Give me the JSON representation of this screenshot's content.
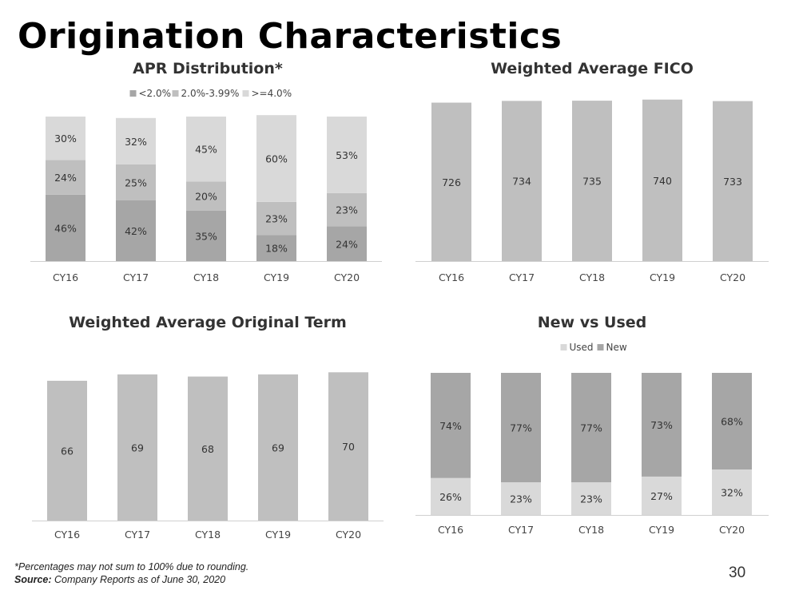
{
  "page": {
    "title": "Origination Characteristics",
    "footnote": "*Percentages may not sum to 100% due to rounding.",
    "source_label": "Source:",
    "source_text": "Company Reports as of June 30, 2020",
    "page_number": "30"
  },
  "colors": {
    "apr_low": "#a6a6a6",
    "apr_mid": "#bfbfbf",
    "apr_high": "#d9d9d9",
    "bar_single": "#bfbfbf",
    "used": "#d9d9d9",
    "new": "#a6a6a6",
    "axis": "#d0d0d0"
  },
  "chart_data": [
    {
      "id": "apr",
      "type": "bar",
      "stacked": true,
      "title": "APR Distribution*",
      "categories": [
        "CY16",
        "CY17",
        "CY18",
        "CY19",
        "CY20"
      ],
      "series": [
        {
          "name": "<2.0%",
          "values": [
            46,
            42,
            35,
            18,
            24
          ],
          "labels": [
            "46%",
            "42%",
            "35%",
            "18%",
            "24%"
          ],
          "color_key": "apr_low"
        },
        {
          "name": "2.0%-3.99%",
          "values": [
            24,
            25,
            20,
            23,
            23
          ],
          "labels": [
            "24%",
            "25%",
            "20%",
            "23%",
            "23%"
          ],
          "color_key": "apr_mid"
        },
        {
          "name": ">=4.0%",
          "values": [
            30,
            32,
            45,
            60,
            53
          ],
          "labels": [
            "30%",
            "32%",
            "45%",
            "60%",
            "53%"
          ],
          "color_key": "apr_high"
        }
      ],
      "ylim": [
        0,
        100
      ],
      "legend": "top"
    },
    {
      "id": "fico",
      "type": "bar",
      "title": "Weighted Average FICO",
      "categories": [
        "CY16",
        "CY17",
        "CY18",
        "CY19",
        "CY20"
      ],
      "values": [
        726,
        734,
        735,
        740,
        733
      ],
      "labels": [
        "726",
        "734",
        "735",
        "740",
        "733"
      ],
      "ylim": [
        0,
        750
      ],
      "color_key": "bar_single"
    },
    {
      "id": "term",
      "type": "bar",
      "title": "Weighted Average Original Term",
      "categories": [
        "CY16",
        "CY17",
        "CY18",
        "CY19",
        "CY20"
      ],
      "values": [
        66,
        69,
        68,
        69,
        70
      ],
      "labels": [
        "66",
        "69",
        "68",
        "69",
        "70"
      ],
      "ylim": [
        0,
        72
      ],
      "color_key": "bar_single"
    },
    {
      "id": "newused",
      "type": "bar",
      "stacked": true,
      "title": "New vs Used",
      "categories": [
        "CY16",
        "CY17",
        "CY18",
        "CY19",
        "CY20"
      ],
      "series": [
        {
          "name": "Used",
          "values": [
            26,
            23,
            23,
            27,
            32
          ],
          "labels": [
            "26%",
            "23%",
            "23%",
            "27%",
            "32%"
          ],
          "color_key": "used"
        },
        {
          "name": "New",
          "values": [
            74,
            77,
            77,
            73,
            68
          ],
          "labels": [
            "74%",
            "77%",
            "77%",
            "73%",
            "68%"
          ],
          "color_key": "new"
        }
      ],
      "ylim": [
        0,
        100
      ],
      "legend": "top"
    }
  ]
}
